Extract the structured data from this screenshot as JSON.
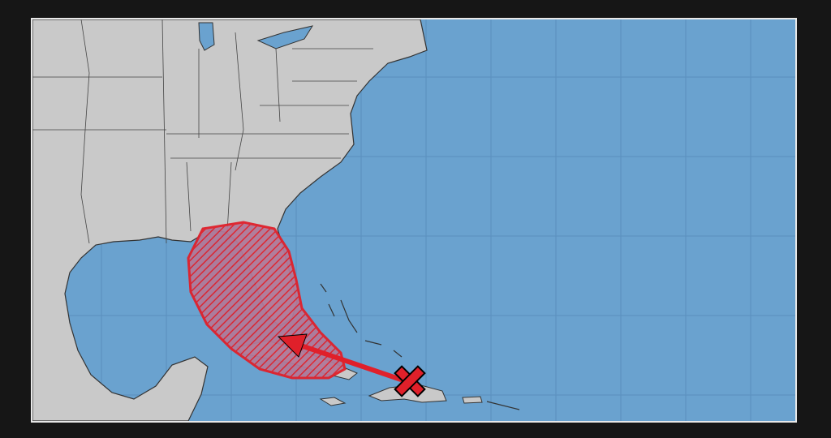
{
  "map": {
    "type": "tropical-weather-outlook",
    "colors": {
      "ocean": "#6aa2cf",
      "land": "#c9c9c9",
      "border": "#3a3a3a",
      "grid": "#5a8fbd",
      "outlook_area": "#e0202a",
      "frame": "#161616"
    },
    "outlook_area": {
      "fill": "hatched",
      "risk_color": "#e0202a"
    },
    "marker": {
      "icon": "x-icon",
      "color": "#e0202a"
    },
    "track_arrow": {
      "icon": "arrow-icon",
      "direction": "northwest"
    }
  }
}
